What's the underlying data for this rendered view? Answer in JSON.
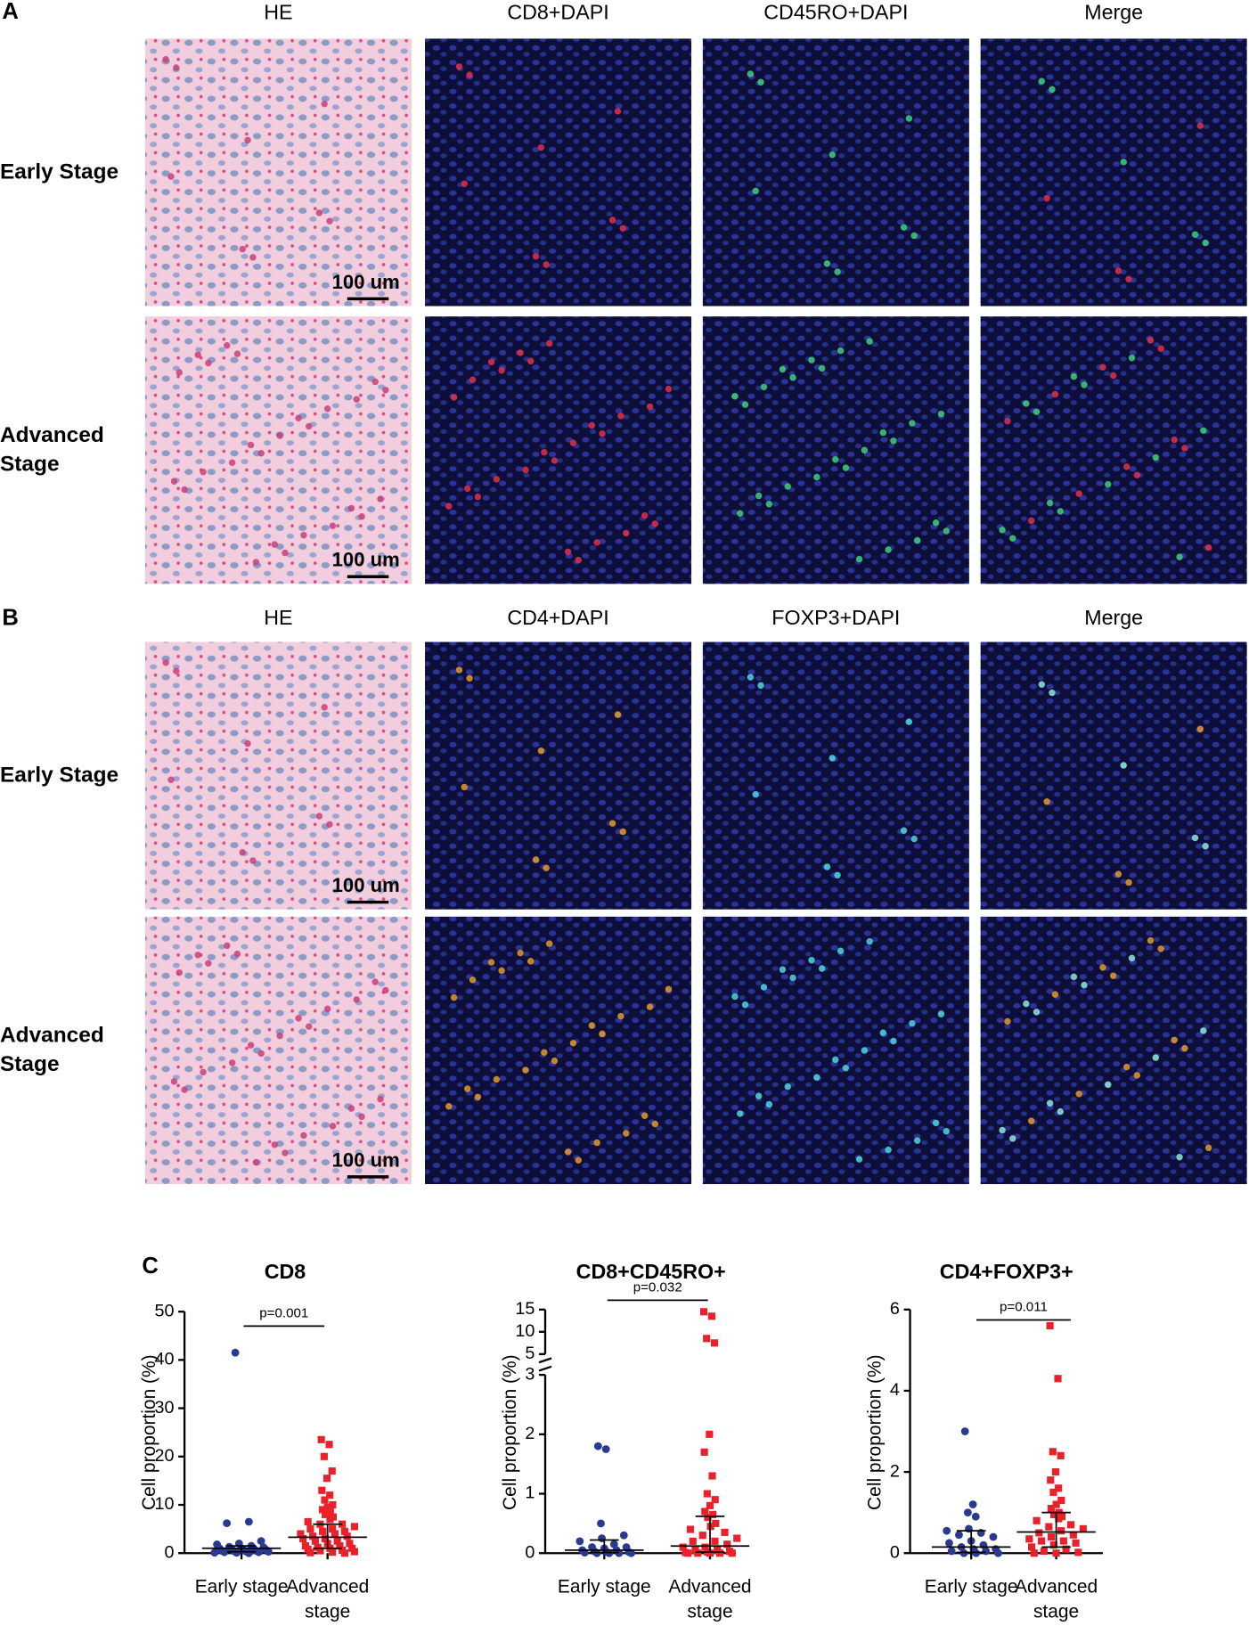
{
  "figure": {
    "panel_a": {
      "label": "A",
      "columns": [
        "HE",
        "CD8+DAPI",
        "CD45RO+DAPI",
        "Merge"
      ],
      "rows": [
        "Early Stage",
        "Advanced Stage"
      ]
    },
    "panel_b": {
      "label": "B",
      "columns": [
        "HE",
        "CD4+DAPI",
        "FOXP3+DAPI",
        "Merge"
      ],
      "rows": [
        "Early Stage",
        "Advanced Stage"
      ]
    },
    "scale_bar": "100 um",
    "panel_c": {
      "label": "C"
    }
  },
  "chart_data": [
    {
      "type": "strip",
      "title": "CD8",
      "ylabel": "Cell proportion (%)",
      "annotation": "p=0.001",
      "categories": [
        "Early stage",
        "Advanced stage"
      ],
      "ylim": [
        0,
        50
      ],
      "yticks": [
        0,
        10,
        20,
        30,
        40,
        50
      ],
      "groups": [
        {
          "color": "#2b3a8f",
          "marker": "circle",
          "median": 1.0,
          "q1": 0.3,
          "q3": 1.5,
          "values": [
            41.5,
            6.5,
            6.2,
            2.5,
            2.0,
            1.8,
            1.5,
            1.3,
            1.2,
            1.0,
            1.0,
            0.9,
            0.8,
            0.7,
            0.6,
            0.5,
            0.5,
            0.4,
            0.3,
            0.3,
            0.2,
            0.2,
            0.1,
            0.1,
            0
          ]
        },
        {
          "color": "#e8212a",
          "marker": "square",
          "median": 3.3,
          "q1": 1.0,
          "q3": 6.0,
          "values": [
            23.5,
            22.5,
            20,
            17,
            15.5,
            13,
            12,
            11,
            10,
            9.5,
            9,
            8.5,
            8,
            7.5,
            7,
            6.5,
            6,
            6,
            5.5,
            5,
            5,
            4.5,
            4.5,
            4,
            4,
            3.5,
            3.5,
            3,
            3,
            2.5,
            2.5,
            2,
            2,
            1.5,
            1.5,
            1.2,
            1,
            1,
            0.8,
            0.6,
            0.5,
            0.3,
            0.2,
            0.1,
            0
          ]
        }
      ]
    },
    {
      "type": "strip",
      "title": "CD8+CD45RO+",
      "ylabel": "Cell proportion (%)",
      "annotation": "p=0.032",
      "categories": [
        "Early stage",
        "Advanced stage"
      ],
      "ylim": [
        0,
        3
      ],
      "yticks": [
        0,
        1,
        2,
        3
      ],
      "y_break": {
        "ylim": [
          5,
          15
        ],
        "yticks": [
          5,
          10,
          15
        ]
      },
      "groups": [
        {
          "color": "#2b3a8f",
          "marker": "circle",
          "median": 0.05,
          "q1": 0.01,
          "q3": 0.22,
          "values": [
            1.8,
            1.75,
            0.5,
            0.3,
            0.25,
            0.2,
            0.15,
            0.1,
            0.1,
            0.08,
            0.05,
            0.05,
            0.03,
            0.02,
            0.02,
            0.01,
            0,
            0,
            0,
            0
          ]
        },
        {
          "color": "#e8212a",
          "marker": "square",
          "median": 0.12,
          "q1": 0.02,
          "q3": 0.62,
          "values": [
            14.5,
            13.5,
            8.5,
            7.5,
            2.0,
            1.7,
            1.3,
            1.0,
            0.9,
            0.8,
            0.7,
            0.65,
            0.6,
            0.5,
            0.45,
            0.4,
            0.35,
            0.3,
            0.25,
            0.2,
            0.2,
            0.15,
            0.1,
            0.1,
            0.05,
            0.05,
            0.03,
            0.02,
            0.01,
            0,
            0,
            0,
            0,
            0
          ]
        }
      ]
    },
    {
      "type": "strip",
      "title": "CD4+FOXP3+",
      "ylabel": "Cell proportion (%)",
      "annotation": "p=0.011",
      "categories": [
        "Early stage",
        "Advanced stage"
      ],
      "ylim": [
        0,
        6
      ],
      "yticks": [
        0,
        2,
        4,
        6
      ],
      "groups": [
        {
          "color": "#2b3a8f",
          "marker": "circle",
          "median": 0.15,
          "q1": 0.02,
          "q3": 0.55,
          "values": [
            3.0,
            1.2,
            1.0,
            0.9,
            0.6,
            0.55,
            0.5,
            0.45,
            0.4,
            0.3,
            0.25,
            0.2,
            0.15,
            0.1,
            0.1,
            0.05,
            0.05,
            0,
            0,
            0
          ]
        },
        {
          "color": "#e8212a",
          "marker": "square",
          "median": 0.52,
          "q1": 0.15,
          "q3": 1.0,
          "values": [
            5.6,
            4.3,
            2.5,
            2.4,
            2.0,
            1.8,
            1.6,
            1.5,
            1.3,
            1.2,
            1.1,
            1.0,
            0.95,
            0.9,
            0.85,
            0.8,
            0.7,
            0.65,
            0.6,
            0.55,
            0.5,
            0.45,
            0.4,
            0.35,
            0.3,
            0.3,
            0.25,
            0.2,
            0.15,
            0.1,
            0.05,
            0.02,
            0,
            0
          ]
        }
      ]
    }
  ]
}
